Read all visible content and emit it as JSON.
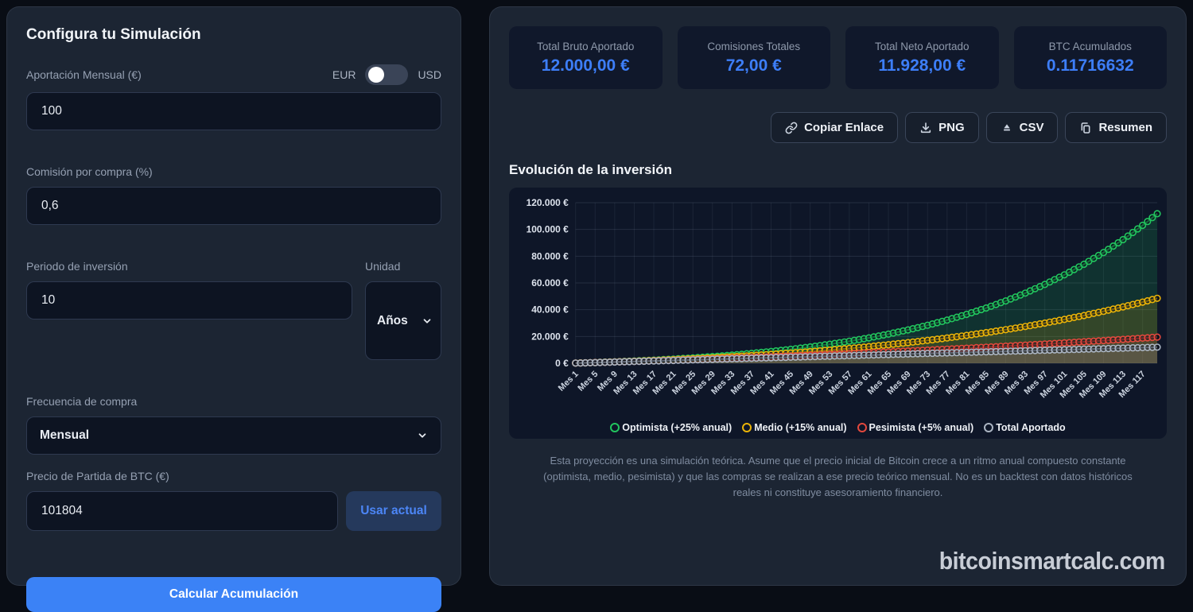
{
  "config": {
    "title": "Configura tu Simulación",
    "currency": {
      "left_label": "EUR",
      "right_label": "USD",
      "selected": "EUR"
    },
    "aportacion": {
      "label": "Aportación Mensual (€)",
      "value": "100"
    },
    "comision": {
      "label": "Comisión por compra (%)",
      "value": "0,6"
    },
    "periodo": {
      "label": "Periodo de inversión",
      "value": "10"
    },
    "unidad": {
      "label": "Unidad",
      "value": "Años"
    },
    "frecuencia": {
      "label": "Frecuencia de compra",
      "value": "Mensual"
    },
    "precio": {
      "label": "Precio de Partida de BTC (€)",
      "value": "101804",
      "use_current_label": "Usar actual"
    },
    "calculate_label": "Calcular Acumulación"
  },
  "results": {
    "stats": [
      {
        "label": "Total Bruto Aportado",
        "value": "12.000,00 €"
      },
      {
        "label": "Comisiones Totales",
        "value": "72,00 €"
      },
      {
        "label": "Total Neto Aportado",
        "value": "11.928,00 €"
      },
      {
        "label": "BTC Acumulados",
        "value": "0.11716632"
      }
    ],
    "export_buttons": [
      {
        "label": "Copiar Enlace",
        "icon": "link-icon"
      },
      {
        "label": "PNG",
        "icon": "download-icon"
      },
      {
        "label": "CSV",
        "icon": "export-csv-icon"
      },
      {
        "label": "Resumen",
        "icon": "copy-icon"
      }
    ],
    "chart_title": "Evolución de la inversión",
    "disclaimer": "Esta proyección es una simulación teórica. Asume que el precio inicial de Bitcoin crece a un ritmo anual compuesto constante (optimista, medio, pesimista) y que las compras se realizan a ese precio teórico mensual. No es un backtest con datos históricos reales ni constituye asesoramiento financiero.",
    "watermark": "bitcoinsmartcalc.com"
  },
  "colors": {
    "accent_blue": "#3b82f6",
    "stat_value_blue": "#3d7ef8",
    "panel_bg": "#1c2533",
    "inner_bg": "#0e1628",
    "optimista_green": "#22c55e",
    "medio_yellow": "#eab308",
    "pesimista_red": "#e2483d",
    "aportado_gray": "#aab4c2"
  },
  "chart_data": {
    "type": "line",
    "title": "Evolución de la inversión",
    "x_unit": "Mes",
    "x_total_months": 120,
    "x_tick_step": 4,
    "ylim": [
      0,
      120000
    ],
    "y_ticks": [
      "0 €",
      "20.000 €",
      "40.000 €",
      "60.000 €",
      "80.000 €",
      "100.000 €",
      "120.000 €"
    ],
    "grid": true,
    "legend_position": "bottom",
    "months_sampled": [
      1,
      5,
      9,
      13,
      17,
      21,
      25,
      29,
      33,
      37,
      41,
      45,
      49,
      53,
      57,
      61,
      65,
      69,
      73,
      77,
      81,
      85,
      89,
      93,
      97,
      101,
      105,
      109,
      113,
      117,
      120
    ],
    "series": [
      {
        "name": "Optimista (+25% anual)",
        "color": "#22c55e",
        "fill": "rgba(34,197,94,0.16)",
        "values": [
          102,
          549,
          1064,
          1655,
          2332,
          3103,
          3980,
          4973,
          6096,
          7362,
          8788,
          10390,
          12187,
          14200,
          16451,
          18964,
          21768,
          24892,
          28369,
          32233,
          36526,
          41290,
          46571,
          52422,
          58898,
          66062,
          73982,
          82730,
          92389,
          103046,
          111759
        ]
      },
      {
        "name": "Medio (+15% anual)",
        "color": "#eab308",
        "fill": "rgba(234,179,8,0.16)",
        "values": [
          101,
          530,
          1000,
          1513,
          2072,
          2682,
          3345,
          4065,
          4847,
          5693,
          6609,
          7600,
          8670,
          9825,
          11071,
          12413,
          13858,
          15412,
          17083,
          18878,
          20806,
          22875,
          25093,
          27471,
          30020,
          32748,
          35669,
          38793,
          42135,
          45707,
          48547
        ]
      },
      {
        "name": "Pesimista (+5% anual)",
        "color": "#e2483d",
        "fill": "rgba(226,72,61,0.14)",
        "values": [
          100,
          510,
          934,
          1371,
          1822,
          2287,
          2767,
          3263,
          3774,
          4301,
          4844,
          5404,
          5980,
          6574,
          7185,
          7815,
          8463,
          9130,
          9816,
          10522,
          11247,
          11994,
          12761,
          13550,
          14360,
          15193,
          16048,
          16927,
          17829,
          18756,
          19547
        ]
      },
      {
        "name": "Total Aportado",
        "color": "#aab4c2",
        "fill": "rgba(156,163,175,0.18)",
        "values": [
          100,
          500,
          900,
          1300,
          1700,
          2100,
          2500,
          2900,
          3300,
          3700,
          4100,
          4500,
          4900,
          5300,
          5700,
          6100,
          6500,
          6900,
          7300,
          7700,
          8100,
          8500,
          8900,
          9300,
          9700,
          10100,
          10500,
          10900,
          11300,
          11700,
          12000
        ]
      }
    ]
  }
}
